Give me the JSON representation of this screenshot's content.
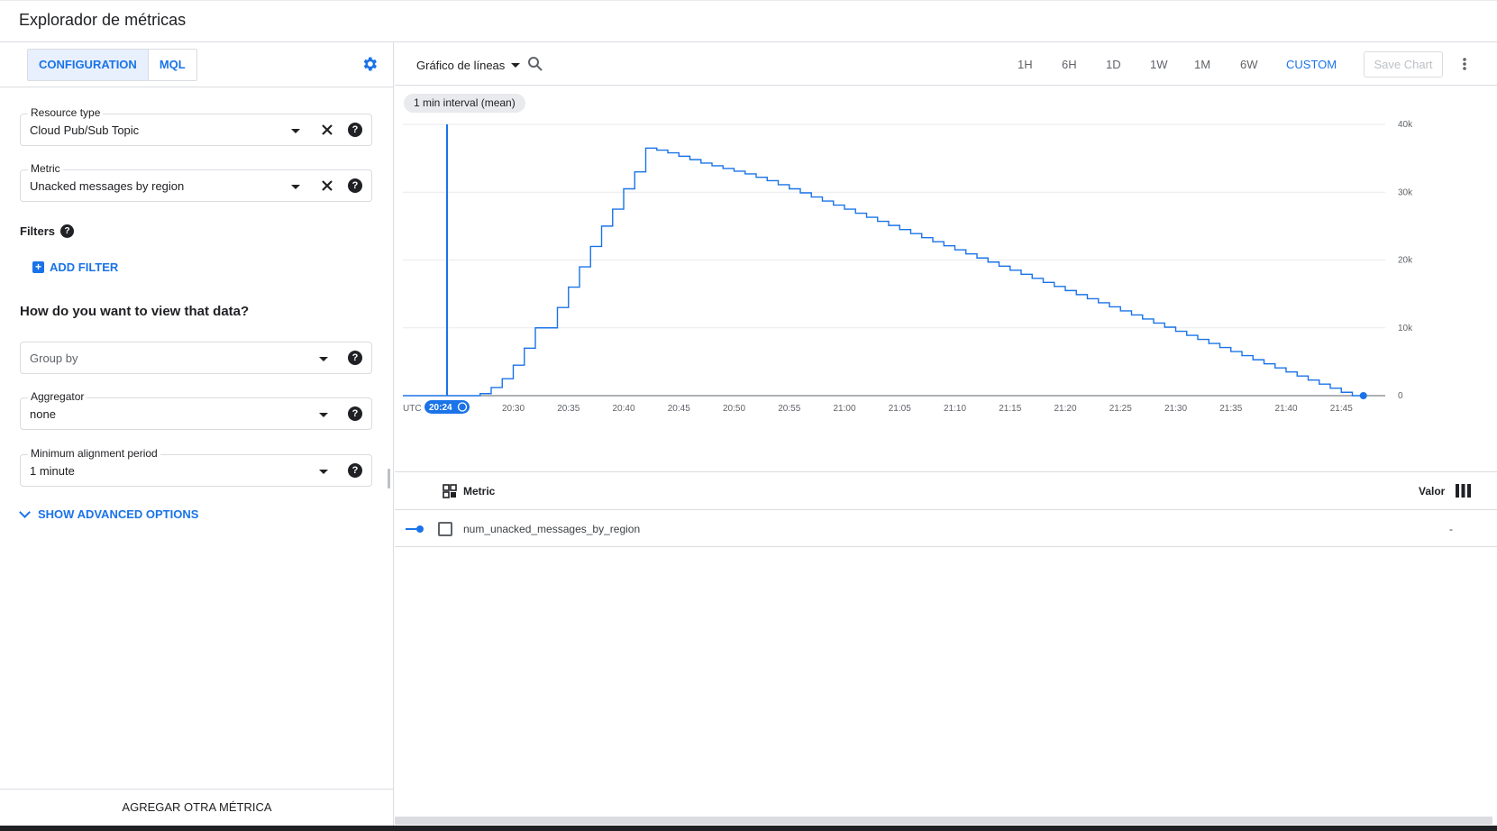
{
  "page": {
    "title": "Explorador de métricas"
  },
  "config": {
    "tabs": [
      {
        "label": "CONFIGURATION",
        "active": true
      },
      {
        "label": "MQL",
        "active": false
      }
    ],
    "settings_icon": "gear-icon",
    "resource_type": {
      "label": "Resource type",
      "value": "Cloud Pub/Sub Topic"
    },
    "metric": {
      "label": "Metric",
      "value": "Unacked messages by region"
    },
    "filters": {
      "label": "Filters",
      "add_label": "ADD FILTER"
    },
    "view_heading": "How do you want to view that data?",
    "group_by": {
      "placeholder": "Group by"
    },
    "aggregator": {
      "label": "Aggregator",
      "value": "none"
    },
    "alignment": {
      "label": "Minimum alignment period",
      "value": "1 minute"
    },
    "advanced_label": "SHOW ADVANCED OPTIONS",
    "add_metric_label": "AGREGAR OTRA MÉTRICA"
  },
  "toolbar": {
    "chart_type": "Gráfico de líneas",
    "ranges": [
      {
        "label": "1H",
        "active": false
      },
      {
        "label": "6H",
        "active": false
      },
      {
        "label": "1D",
        "active": false
      },
      {
        "label": "1W",
        "active": false
      },
      {
        "label": "1M",
        "active": false
      },
      {
        "label": "6W",
        "active": false
      },
      {
        "label": "CUSTOM",
        "active": true
      }
    ],
    "save_label": "Save Chart"
  },
  "chart": {
    "interval_label": "1 min interval (mean)",
    "timezone_label": "UTC",
    "cursor_time": "20:24",
    "accent_color": "#1a73e8"
  },
  "chart_data": {
    "type": "line",
    "x_ticks": [
      "20:30",
      "20:35",
      "20:40",
      "20:45",
      "20:50",
      "20:55",
      "21:00",
      "21:05",
      "21:10",
      "21:15",
      "21:20",
      "21:25",
      "21:30",
      "21:35",
      "21:40",
      "21:45"
    ],
    "y_ticks": [
      "0",
      "10k",
      "20k",
      "30k",
      "40k"
    ],
    "ylim": [
      0,
      40000
    ],
    "xlim": [
      "20:20",
      "21:48"
    ],
    "line_style": "step",
    "grid": true,
    "series": [
      {
        "name": "num_unacked_messages_by_region",
        "x": [
          "20:20",
          "20:21",
          "20:22",
          "20:23",
          "20:24",
          "20:25",
          "20:26",
          "20:27",
          "20:28",
          "20:29",
          "20:30",
          "20:31",
          "20:32",
          "20:33",
          "20:34",
          "20:35",
          "20:36",
          "20:37",
          "20:38",
          "20:39",
          "20:40",
          "20:41",
          "20:42",
          "20:43",
          "20:44",
          "20:45",
          "20:46",
          "20:47",
          "20:48",
          "20:49",
          "20:50",
          "20:51",
          "20:52",
          "20:53",
          "20:54",
          "20:55",
          "20:56",
          "20:57",
          "20:58",
          "20:59",
          "21:00",
          "21:01",
          "21:02",
          "21:03",
          "21:04",
          "21:05",
          "21:06",
          "21:07",
          "21:08",
          "21:09",
          "21:10",
          "21:11",
          "21:12",
          "21:13",
          "21:14",
          "21:15",
          "21:16",
          "21:17",
          "21:18",
          "21:19",
          "21:20",
          "21:21",
          "21:22",
          "21:23",
          "21:24",
          "21:25",
          "21:26",
          "21:27",
          "21:28",
          "21:29",
          "21:30",
          "21:31",
          "21:32",
          "21:33",
          "21:34",
          "21:35",
          "21:36",
          "21:37",
          "21:38",
          "21:39",
          "21:40",
          "21:41",
          "21:42",
          "21:43",
          "21:44",
          "21:45",
          "21:46",
          "21:47"
        ],
        "values": [
          0,
          0,
          0,
          0,
          0,
          0,
          0,
          300,
          1200,
          2500,
          4500,
          7000,
          10000,
          10000,
          13000,
          16000,
          19000,
          22000,
          25000,
          27500,
          30500,
          33000,
          36500,
          36200,
          35800,
          35300,
          34800,
          34300,
          33900,
          33500,
          33100,
          32700,
          32200,
          31700,
          31100,
          30500,
          29900,
          29300,
          28700,
          28100,
          27500,
          26900,
          26300,
          25700,
          25100,
          24500,
          23900,
          23300,
          22700,
          22100,
          21500,
          20900,
          20300,
          19700,
          19100,
          18500,
          17900,
          17300,
          16700,
          16100,
          15500,
          14900,
          14300,
          13700,
          13100,
          12500,
          11900,
          11300,
          10700,
          10100,
          9500,
          8900,
          8300,
          7700,
          7100,
          6500,
          5900,
          5300,
          4700,
          4100,
          3500,
          2900,
          2300,
          1700,
          1100,
          500,
          0,
          0
        ]
      }
    ]
  },
  "legend": {
    "metric_header": "Metric",
    "value_header": "Valor",
    "rows": [
      {
        "name": "num_unacked_messages_by_region",
        "value": "-"
      }
    ]
  }
}
